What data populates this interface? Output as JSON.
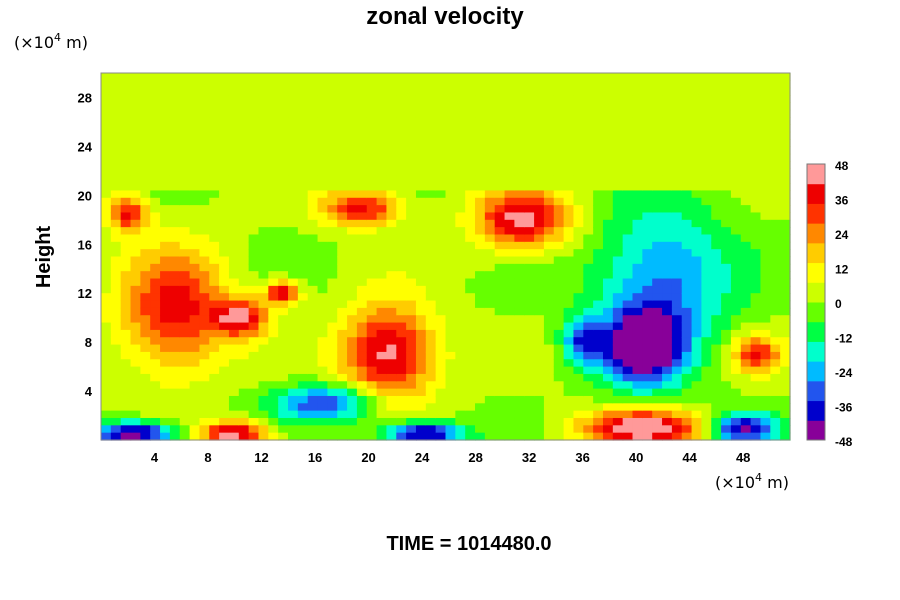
{
  "chart_data": {
    "type": "heatmap",
    "title": "zonal velocity",
    "ylabel": "Height",
    "xlabel": "",
    "x_unit": {
      "prefix": "(×10",
      "exponent": "4",
      "suffix": " m)"
    },
    "y_unit": {
      "prefix": "(×10",
      "exponent": "4",
      "suffix": " m)"
    },
    "xlim": [
      0,
      51.5
    ],
    "ylim": [
      0,
      30
    ],
    "x_ticks": [
      4,
      8,
      12,
      16,
      20,
      24,
      28,
      32,
      36,
      40,
      44,
      48
    ],
    "y_ticks": [
      4,
      8,
      12,
      16,
      20,
      24,
      28
    ],
    "colorbar": {
      "ticks": [
        48,
        36,
        24,
        12,
        0,
        -12,
        -24,
        -36,
        -48
      ],
      "range": [
        -48,
        48
      ],
      "colors": [
        "#880099",
        "#0000cc",
        "#2255ee",
        "#00bbff",
        "#00ffcc",
        "#00ff44",
        "#66ff00",
        "#ccff00",
        "#ffff00",
        "#ffcc00",
        "#ff8800",
        "#ff3300",
        "#ee0000",
        "#ff9999"
      ]
    },
    "field_features": [
      {
        "x": 5.5,
        "y": 10.5,
        "sx": 4,
        "sy": 5,
        "value": 38,
        "desc": "western positive jet"
      },
      {
        "x": 10.5,
        "y": 10,
        "sx": 2,
        "sy": 1.5,
        "value": 40,
        "desc": "small maximum"
      },
      {
        "x": 2,
        "y": 18.5,
        "sx": 1.5,
        "sy": 1.5,
        "value": 36,
        "desc": "upper left maximum"
      },
      {
        "x": 13.5,
        "y": 12,
        "sx": 1.3,
        "sy": 1,
        "value": 40,
        "desc": "small maximum"
      },
      {
        "x": 21.5,
        "y": 7,
        "sx": 3.5,
        "sy": 4,
        "value": 46,
        "desc": "central positive jet"
      },
      {
        "x": 19.5,
        "y": 19,
        "sx": 3,
        "sy": 1.5,
        "value": 38,
        "desc": "upper positive band"
      },
      {
        "x": 31.5,
        "y": 18,
        "sx": 3.5,
        "sy": 2.5,
        "value": 44,
        "desc": "upper right positive maximum"
      },
      {
        "x": 40.5,
        "y": 7.5,
        "sx": 3,
        "sy": 3,
        "value": -50,
        "desc": "negative jet core"
      },
      {
        "x": 42,
        "y": 13,
        "sx": 5,
        "sy": 6,
        "value": -30,
        "desc": "broad negative region"
      },
      {
        "x": 36,
        "y": 8,
        "sx": 1.5,
        "sy": 2,
        "value": -30,
        "desc": "negative filament"
      },
      {
        "x": 49,
        "y": 7,
        "sx": 1.8,
        "sy": 1.5,
        "value": 34,
        "desc": "right edge maximum"
      },
      {
        "x": 17,
        "y": 3,
        "sx": 4,
        "sy": 1.5,
        "value": -36,
        "desc": "lower negative band"
      },
      {
        "x": 40.5,
        "y": 1,
        "sx": 4.5,
        "sy": 1.5,
        "value": 50,
        "desc": "surface positive maximum"
      },
      {
        "x": 10,
        "y": 0.5,
        "sx": 2.5,
        "sy": 1,
        "value": 48,
        "desc": "surface positive maximum"
      },
      {
        "x": 2.5,
        "y": 0.5,
        "sx": 3,
        "sy": 1,
        "value": -50,
        "desc": "surface negative"
      },
      {
        "x": 24,
        "y": 0.5,
        "sx": 3,
        "sy": 1,
        "value": -48,
        "desc": "surface negative"
      },
      {
        "x": 48,
        "y": 1,
        "sx": 2.5,
        "sy": 1.2,
        "value": -44,
        "desc": "surface negative"
      },
      {
        "x": 27,
        "y": 14.5,
        "sx": 1.5,
        "sy": 1,
        "value": 5,
        "desc": "weak region"
      }
    ],
    "upper_layer": {
      "above_y": 20.3,
      "value": 2
    },
    "time_label": "TIME = 1014480.0"
  }
}
